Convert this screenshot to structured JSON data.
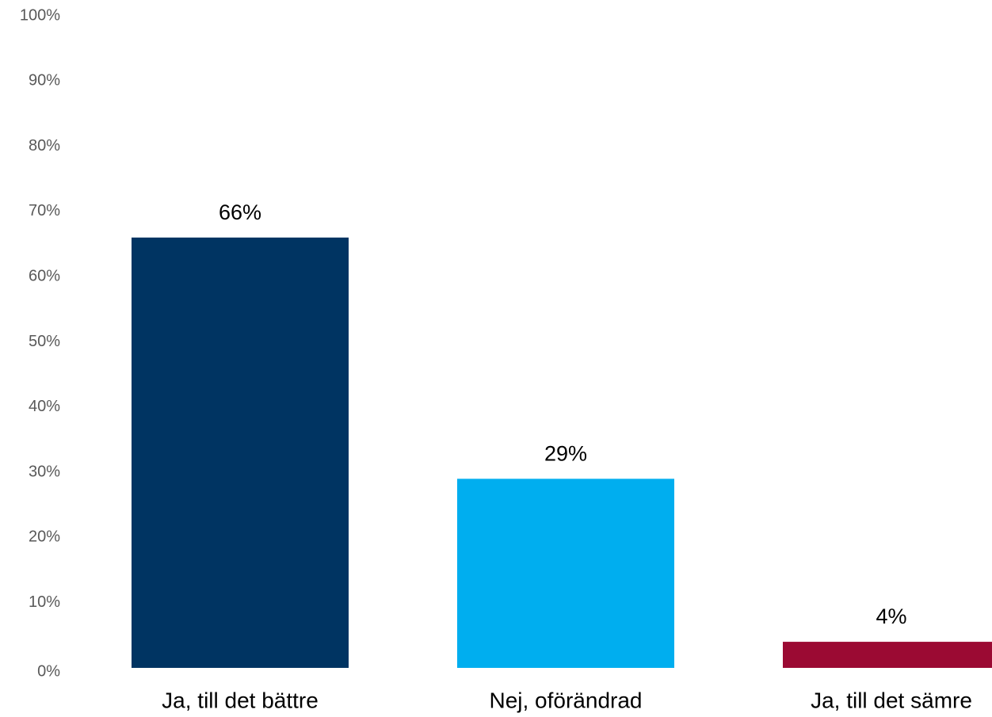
{
  "chart_data": {
    "type": "bar",
    "categories": [
      "Ja, till det bättre",
      "Nej, oförändrad",
      "Ja, till det sämre"
    ],
    "values": [
      66,
      29,
      4
    ],
    "value_labels": [
      "66%",
      "29%",
      "4%"
    ],
    "colors": [
      "#003462",
      "#00aeef",
      "#9b0a33"
    ],
    "ylim": [
      0,
      100
    ],
    "yticks": [
      {
        "value": 0,
        "label": "0%"
      },
      {
        "value": 10,
        "label": "10%"
      },
      {
        "value": 20,
        "label": "20%"
      },
      {
        "value": 30,
        "label": "30%"
      },
      {
        "value": 40,
        "label": "40%"
      },
      {
        "value": 50,
        "label": "50%"
      },
      {
        "value": 60,
        "label": "60%"
      },
      {
        "value": 70,
        "label": "70%"
      },
      {
        "value": 80,
        "label": "80%"
      },
      {
        "value": 90,
        "label": "90%"
      },
      {
        "value": 100,
        "label": "100%"
      }
    ],
    "grid": false
  }
}
